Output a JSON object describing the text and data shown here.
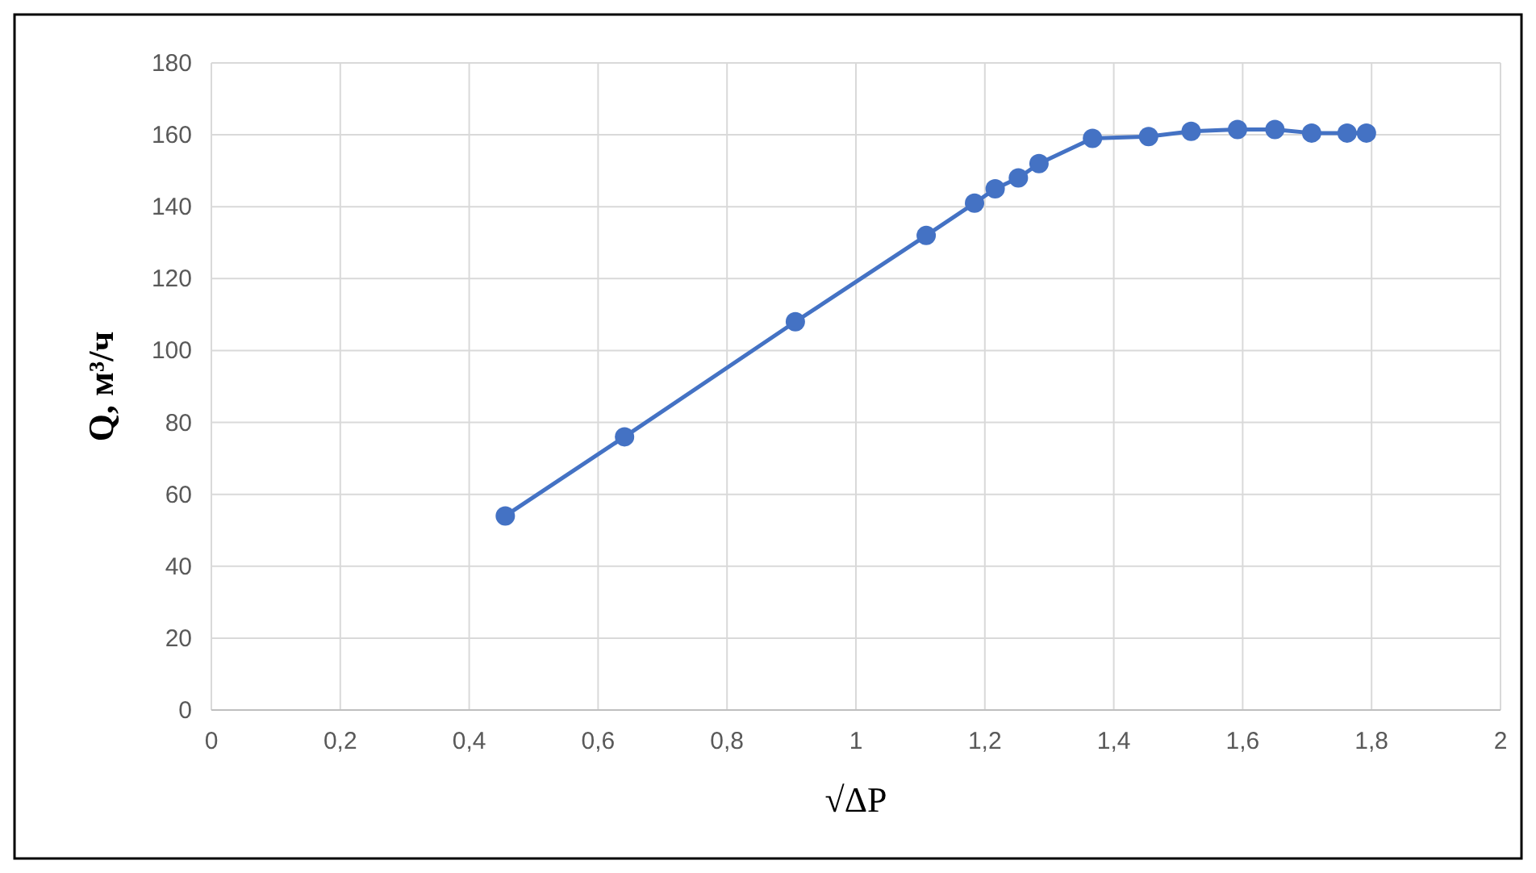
{
  "chart_data": {
    "type": "line",
    "xlabel": "√ΔP",
    "ylabel": "Q, м³/ч",
    "x": [
      0.456,
      0.641,
      0.906,
      1.109,
      1.184,
      1.216,
      1.252,
      1.284,
      1.367,
      1.454,
      1.52,
      1.592,
      1.65,
      1.707,
      1.762,
      1.792
    ],
    "series": [
      {
        "color": "#4472c4",
        "values": [
          54,
          76,
          108,
          132,
          141,
          145,
          148,
          152,
          159,
          159.5,
          161,
          161.5,
          161.5,
          160.5,
          160.5,
          160.5
        ]
      }
    ],
    "xlim": [
      0,
      2
    ],
    "xticks": [
      0,
      {
        "value": 0.2,
        "label": "0,2"
      },
      {
        "value": 0.4,
        "label": "0,4"
      },
      {
        "value": 0.6,
        "label": "0,6"
      },
      {
        "value": 0.8,
        "label": "0,8"
      },
      1,
      {
        "value": 1.2,
        "label": "1,2"
      },
      {
        "value": 1.4,
        "label": "1,4"
      },
      {
        "value": 1.6,
        "label": "1,6"
      },
      {
        "value": 1.8,
        "label": "1,8"
      },
      2
    ],
    "ylim": [
      0,
      180
    ],
    "yticks": [
      0,
      20,
      40,
      60,
      80,
      100,
      120,
      140,
      160,
      180
    ],
    "grid": true,
    "marker": "circle",
    "line_style": "solid"
  }
}
